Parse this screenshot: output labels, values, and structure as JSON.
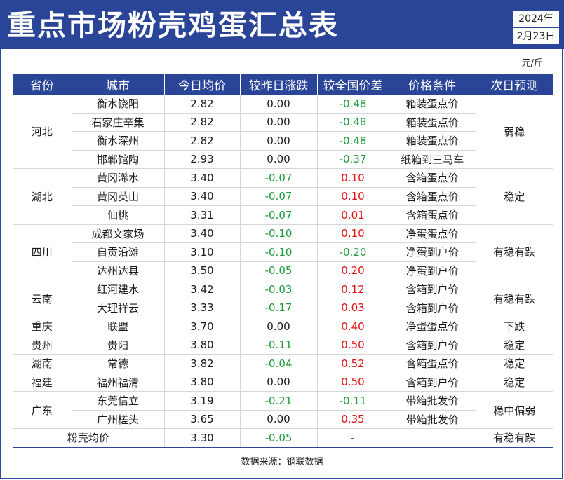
{
  "header": {
    "title": "重点市场粉壳鸡蛋汇总表",
    "year": "2024年",
    "date": "2月23日"
  },
  "unit": "元/斤",
  "table": {
    "columns": [
      "省份",
      "城市",
      "今日均价",
      "较昨日涨跌",
      "较全国价差",
      "价格条件",
      "次日预测"
    ],
    "rows": [
      {
        "city": "衡水饶阳",
        "price": "2.82",
        "change": "0.00",
        "diff": "-0.48",
        "cond": "箱装蛋点价"
      },
      {
        "city": "石家庄辛集",
        "price": "2.82",
        "change": "0.00",
        "diff": "-0.48",
        "cond": "箱装蛋点价"
      },
      {
        "city": "衡水深州",
        "price": "2.82",
        "change": "0.00",
        "diff": "-0.48",
        "cond": "箱装蛋点价"
      },
      {
        "city": "邯郸馆陶",
        "price": "2.93",
        "change": "0.00",
        "diff": "-0.37",
        "cond": "纸箱到三马车"
      },
      {
        "city": "黄冈浠水",
        "price": "3.40",
        "change": "-0.07",
        "diff": "0.10",
        "cond": "含箱蛋点价"
      },
      {
        "city": "黄冈英山",
        "price": "3.40",
        "change": "-0.07",
        "diff": "0.10",
        "cond": "含箱蛋点价"
      },
      {
        "city": "仙桃",
        "price": "3.31",
        "change": "-0.07",
        "diff": "0.01",
        "cond": "含箱蛋点价"
      },
      {
        "city": "成都文家场",
        "price": "3.40",
        "change": "-0.10",
        "diff": "0.10",
        "cond": "净蛋蛋点价"
      },
      {
        "city": "自贡沿滩",
        "price": "3.10",
        "change": "-0.10",
        "diff": "-0.20",
        "cond": "净蛋到户价"
      },
      {
        "city": "达州达县",
        "price": "3.50",
        "change": "-0.05",
        "diff": "0.20",
        "cond": "净蛋到户价"
      },
      {
        "city": "红河建水",
        "price": "3.42",
        "change": "-0.03",
        "diff": "0.12",
        "cond": "含箱到户价"
      },
      {
        "city": "大理祥云",
        "price": "3.33",
        "change": "-0.17",
        "diff": "0.03",
        "cond": "含箱到户价"
      },
      {
        "city": "联盟",
        "price": "3.70",
        "change": "0.00",
        "diff": "0.40",
        "cond": "净蛋蛋点价"
      },
      {
        "city": "贵阳",
        "price": "3.80",
        "change": "-0.11",
        "diff": "0.50",
        "cond": "含箱到户价"
      },
      {
        "city": "常德",
        "price": "3.82",
        "change": "-0.04",
        "diff": "0.52",
        "cond": "含箱蛋点价"
      },
      {
        "city": "福州福清",
        "price": "3.80",
        "change": "0.00",
        "diff": "0.50",
        "cond": "含箱到户价"
      },
      {
        "city": "东莞信立",
        "price": "3.19",
        "change": "-0.21",
        "diff": "-0.11",
        "cond": "带箱批发价"
      },
      {
        "city": "广州槎头",
        "price": "3.65",
        "change": "0.00",
        "diff": "0.35",
        "cond": "带箱批发价"
      }
    ],
    "groups": [
      {
        "province": "河北",
        "forecast": "弱稳"
      },
      {
        "province": "湖北",
        "forecast": "稳定"
      },
      {
        "province": "四川",
        "forecast": "有稳有跌"
      },
      {
        "province": "云南",
        "forecast": "有稳有跌"
      },
      {
        "province": "重庆",
        "forecast": "下跌"
      },
      {
        "province": "贵州",
        "forecast": "稳定"
      },
      {
        "province": "湖南",
        "forecast": "稳定"
      },
      {
        "province": "福建",
        "forecast": "稳定"
      },
      {
        "province": "广东",
        "forecast": "稳中偏弱"
      }
    ],
    "summary": {
      "label": "粉壳均价",
      "price": "3.30",
      "change": "-0.05",
      "diff": "-",
      "cond": "",
      "forecast": "有稳有跌"
    }
  },
  "source": "数据来源：钢联数据",
  "colors": {
    "header_bg": "#2a4597",
    "negative": "#1d9a3a",
    "positive": "#e01010"
  }
}
